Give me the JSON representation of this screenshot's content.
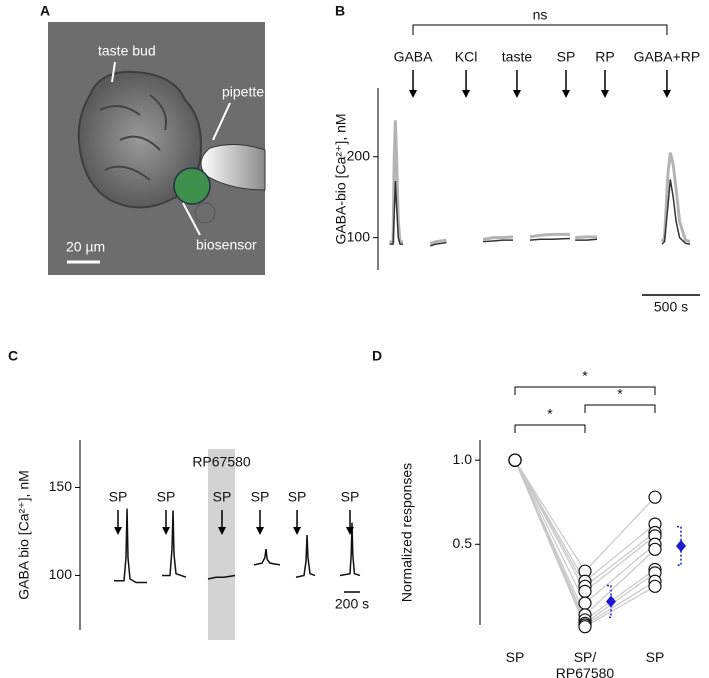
{
  "micrograph": {
    "panel": "A",
    "labels": [
      "taste bud",
      "pipette",
      "biosensor"
    ],
    "scale_bar": "20 µm"
  },
  "chart_data": [
    {
      "type": "line",
      "panel": "B",
      "y_label": "GABA-bio [Ca²⁺], nM",
      "x": [
        100,
        130,
        140,
        150,
        160,
        175,
        190,
        215,
        300,
        450,
        500,
        550,
        590,
        650,
        905,
        1000,
        1080,
        1164,
        1200,
        1310,
        1400,
        1500,
        1655,
        1680,
        1700,
        1800,
        1888,
        2000,
        2448,
        2470,
        2500,
        2520,
        2545,
        2570,
        2600,
        2650,
        2690
      ],
      "series": [
        {
          "color": "#b4b4b4",
          "values": [
            95,
            95,
            200,
            245,
            200,
            120,
            95,
            95,
            null,
            93,
            95,
            96,
            97,
            null,
            98,
            100,
            100,
            101,
            null,
            101,
            103,
            104,
            104,
            null,
            100,
            101,
            101,
            null,
            95,
            100,
            180,
            205,
            190,
            160,
            120,
            97,
            95
          ]
        },
        {
          "color": "#333333",
          "values": [
            92,
            92,
            130,
            170,
            140,
            100,
            92,
            92,
            null,
            90,
            92,
            93,
            94,
            null,
            95,
            96,
            97,
            97,
            null,
            97,
            98,
            98,
            99,
            null,
            97,
            97,
            98,
            null,
            92,
            95,
            140,
            172,
            150,
            120,
            100,
            93,
            92
          ]
        }
      ],
      "stimuli": [
        "GABA",
        "KCl",
        "taste",
        "SP",
        "RP",
        "GABA+RP"
      ],
      "stimulus_x": [
        302,
        759,
        1198,
        1621,
        1957,
        2491
      ],
      "bracket_label": "ns",
      "scale_bar": {
        "value": 500,
        "label": "500 s"
      },
      "xlim": [
        0,
        2776
      ],
      "ylim": [
        60,
        285
      ],
      "yticks": [
        100,
        200
      ]
    },
    {
      "type": "line",
      "panel": "C",
      "y_label": "GABA bio [Ca²⁺], nM",
      "x": [
        425,
        550,
        575,
        588,
        600,
        625,
        700,
        838,
        900,
        1025,
        1125,
        1150,
        1163,
        1175,
        1200,
        1325,
        1400,
        1600,
        1700,
        1800,
        1938,
        2000,
        2175,
        2275,
        2310,
        2325,
        2340,
        2375,
        2500,
        2600,
        2700,
        2800,
        2825,
        2838,
        2850,
        2875,
        2938,
        3000,
        3250,
        3375,
        3390,
        3400,
        3410,
        3430,
        3500
      ],
      "series": [
        {
          "color": "#111111",
          "values": [
            97,
            97,
            110,
            138,
            110,
            98,
            96,
            96,
            null,
            100,
            100,
            115,
            137,
            112,
            101,
            99,
            null,
            98,
            99,
            99,
            100,
            null,
            106,
            107,
            110,
            115,
            109,
            107,
            106,
            null,
            99,
            100,
            108,
            123,
            110,
            101,
            100,
            null,
            100,
            101,
            112,
            130,
            112,
            101,
            100
          ]
        }
      ],
      "stimuli": [
        "SP",
        "SP",
        "SP",
        "SP",
        "SP",
        "SP"
      ],
      "stimulus_x": [
        475,
        1075,
        1775,
        2250,
        2713,
        3375
      ],
      "shaded": {
        "label": "RP67580",
        "range": [
          1600,
          1938
        ]
      },
      "scale_bar": {
        "value": 200,
        "label": "200 s"
      },
      "xlim": [
        0,
        3500
      ],
      "ylim": [
        69,
        177
      ],
      "yticks": [
        100,
        150
      ]
    },
    {
      "type": "paired",
      "panel": "D",
      "y_label": "Normalized  responses",
      "categories": [
        "SP",
        "SP/ RP67580",
        "SP"
      ],
      "series": [
        {
          "color": "#c8c8c8",
          "values": [
            1,
            0.34,
            0.78
          ]
        },
        {
          "color": "#c8c8c8",
          "values": [
            1,
            0.28,
            0.62
          ]
        },
        {
          "color": "#c8c8c8",
          "values": [
            1,
            0.25,
            0.57
          ]
        },
        {
          "color": "#c8c8c8",
          "values": [
            1,
            0.22,
            0.55
          ]
        },
        {
          "color": "#c8c8c8",
          "values": [
            1,
            0.15,
            0.5
          ]
        },
        {
          "color": "#c8c8c8",
          "values": [
            1,
            0.08,
            0.47
          ]
        },
        {
          "color": "#c8c8c8",
          "values": [
            1,
            0.05,
            0.35
          ]
        },
        {
          "color": "#c8c8c8",
          "values": [
            1,
            0.03,
            0.33
          ]
        },
        {
          "color": "#c8c8c8",
          "values": [
            1,
            0.02,
            0.28
          ]
        },
        {
          "color": "#c8c8c8",
          "values": [
            1,
            0.01,
            0.25
          ]
        }
      ],
      "mean": {
        "color": "#1a1ad0",
        "values": [
          null,
          0.16,
          0.49
        ],
        "errors": [
          null,
          0.095,
          0.115
        ]
      },
      "annotations": [
        "*",
        "*",
        "*"
      ],
      "ylim": [
        0.02,
        1.12
      ],
      "yticks": [
        {
          "value": 0.5,
          "label": "0.5"
        },
        {
          "value": 1,
          "label": "1.0"
        }
      ]
    }
  ]
}
